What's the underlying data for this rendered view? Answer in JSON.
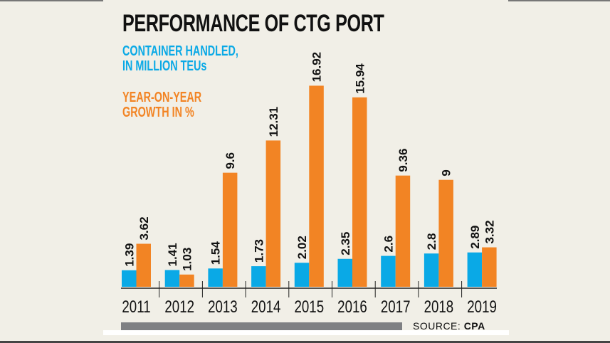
{
  "chart_data": {
    "type": "bar",
    "title": "PERFORMANCE OF CTG PORT",
    "categories": [
      "2011",
      "2012",
      "2013",
      "2014",
      "2015",
      "2016",
      "2017",
      "2018",
      "2019"
    ],
    "series": [
      {
        "name": "CONTAINER HANDLED, IN MILLION TEUs",
        "color": "#0aa9e6",
        "values": [
          1.39,
          1.41,
          1.54,
          1.73,
          2.02,
          2.35,
          2.6,
          2.8,
          2.89
        ],
        "labels": [
          "1.39",
          "1.41",
          "1.54",
          "1.73",
          "2.02",
          "2.35",
          "2.6",
          "2.8",
          "2.89"
        ]
      },
      {
        "name": "YEAR-ON-YEAR GROWTH IN %",
        "color": "#f28424",
        "values": [
          3.62,
          1.03,
          9.6,
          12.31,
          16.92,
          15.94,
          9.36,
          9,
          3.32
        ],
        "labels": [
          "3.62",
          "1.03",
          "9.6",
          "12.31",
          "16.92",
          "15.94",
          "9.36",
          "9",
          "3.32"
        ]
      }
    ],
    "legend": [
      "CONTAINER HANDLED,",
      "IN MILLION TEUs",
      "YEAR-ON-YEAR",
      "GROWTH IN %"
    ],
    "ylim": [
      0,
      17
    ],
    "grid": false,
    "legend_placement": "top-left",
    "source_label": "SOURCE:",
    "source_name": "CPA"
  }
}
